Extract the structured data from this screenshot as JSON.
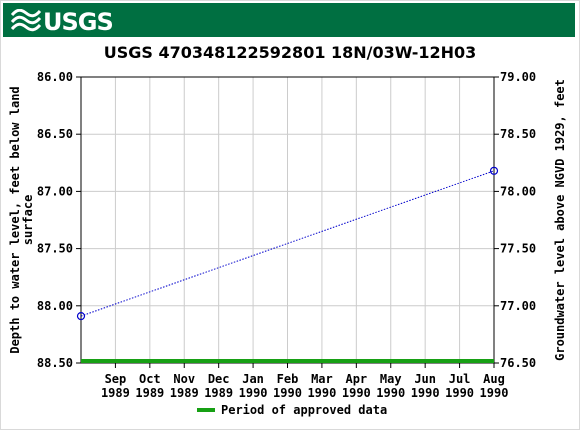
{
  "header": {
    "logo_text": "USGS",
    "brand_color": "#006f41"
  },
  "chart_data": {
    "type": "line",
    "title": "USGS 470348122592801 18N/03W-12H03",
    "ylabel_left": "Depth to water level, feet below land surface",
    "ylabel_right": "Groundwater level above NGVD 1929, feet",
    "y_left_range": [
      86.0,
      88.5
    ],
    "y_left_inverted": true,
    "y_right_range": [
      76.5,
      79.0
    ],
    "y_left_ticks": [
      "86.00",
      "86.50",
      "87.00",
      "87.50",
      "88.00",
      "88.50"
    ],
    "y_right_ticks": [
      "79.00",
      "78.50",
      "78.00",
      "77.50",
      "77.00",
      "76.50"
    ],
    "x_ticks": [
      {
        "month": "Sep",
        "year": "1989"
      },
      {
        "month": "Oct",
        "year": "1989"
      },
      {
        "month": "Nov",
        "year": "1989"
      },
      {
        "month": "Dec",
        "year": "1989"
      },
      {
        "month": "Jan",
        "year": "1990"
      },
      {
        "month": "Feb",
        "year": "1990"
      },
      {
        "month": "Mar",
        "year": "1990"
      },
      {
        "month": "Apr",
        "year": "1990"
      },
      {
        "month": "May",
        "year": "1990"
      },
      {
        "month": "Jun",
        "year": "1990"
      },
      {
        "month": "Jul",
        "year": "1990"
      },
      {
        "month": "Aug",
        "year": "1990"
      }
    ],
    "grid": true,
    "series": [
      {
        "points": [
          {
            "x": "1989-08",
            "y": 88.09
          },
          {
            "x": "1990-08",
            "y": 86.82
          }
        ],
        "color": "#0000cc",
        "style": "dotted",
        "marker": "circle"
      }
    ],
    "approved_period": {
      "color": "#17a014"
    },
    "legend": {
      "label": "Period of approved data",
      "placement": "bottom"
    }
  }
}
